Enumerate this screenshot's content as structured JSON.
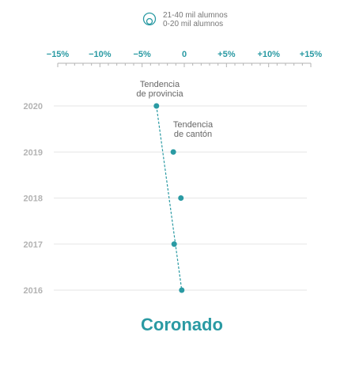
{
  "legend": {
    "line1": "21-40 mil alumnos",
    "line2": "0-20 mil alumnos"
  },
  "colors": {
    "accent": "#2a9aa3",
    "grid": "#e6e6e6",
    "axis": "#b3b3b3",
    "year": "#b3b3b3",
    "annotation": "#666666"
  },
  "chart_data": {
    "type": "scatter",
    "title": "Coronado",
    "x_ticks": [
      "−15%",
      "−10%",
      "−5%",
      "0",
      "+5%",
      "+10%",
      "+15%"
    ],
    "x_tick_values": [
      -15,
      -10,
      -5,
      0,
      5,
      10,
      15
    ],
    "xlim": [
      -15,
      15
    ],
    "categories": [
      "2020",
      "2019",
      "2018",
      "2017",
      "2016"
    ],
    "series": [
      {
        "values": [
          -3.3,
          -1.3,
          -0.4,
          -1.2,
          -0.3
        ]
      }
    ],
    "trend": [
      {
        "y": "2020",
        "x": -3.3
      },
      {
        "y": "2016",
        "x": -0.3
      }
    ],
    "annotations": [
      {
        "lines": [
          "Tendencia",
          "de provincia"
        ]
      },
      {
        "lines": [
          "Tendencia",
          "de cantón"
        ]
      }
    ],
    "grid": true
  }
}
